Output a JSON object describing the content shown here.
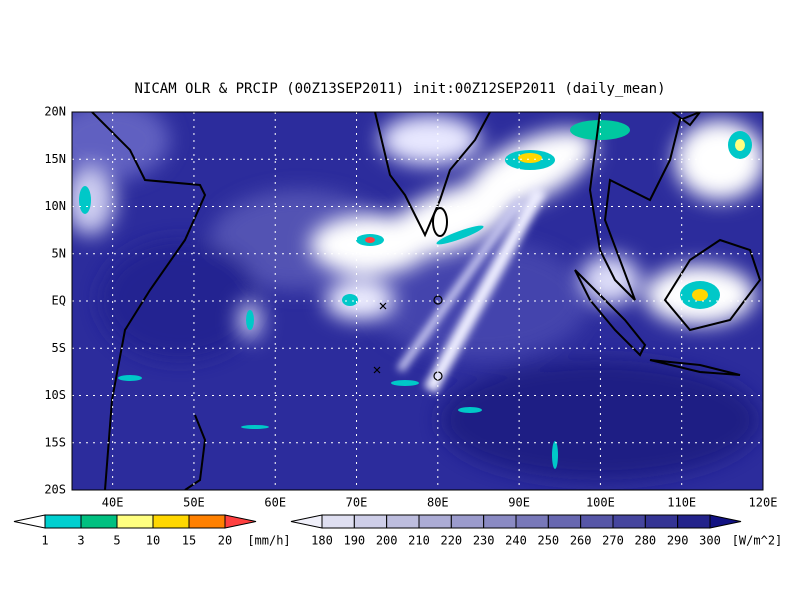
{
  "title": "NICAM OLR & PRCIP (00Z13SEP2011) init:00Z12SEP2011 (daily_mean)",
  "lat_labels": [
    "20N",
    "15N",
    "10N",
    "5N",
    "EQ",
    "5S",
    "10S",
    "15S",
    "20S"
  ],
  "lon_labels": [
    "40E",
    "50E",
    "60E",
    "70E",
    "80E",
    "90E",
    "100E",
    "110E",
    "120E"
  ],
  "precip_legend": {
    "labels": [
      "1",
      "3",
      "5",
      "10",
      "15",
      "20"
    ],
    "unit": "[mm/h]"
  },
  "olr_legend": {
    "labels": [
      "180",
      "190",
      "200",
      "210",
      "220",
      "230",
      "240",
      "250",
      "260",
      "270",
      "280",
      "290",
      "300"
    ],
    "unit": "[W/m^2]"
  }
}
